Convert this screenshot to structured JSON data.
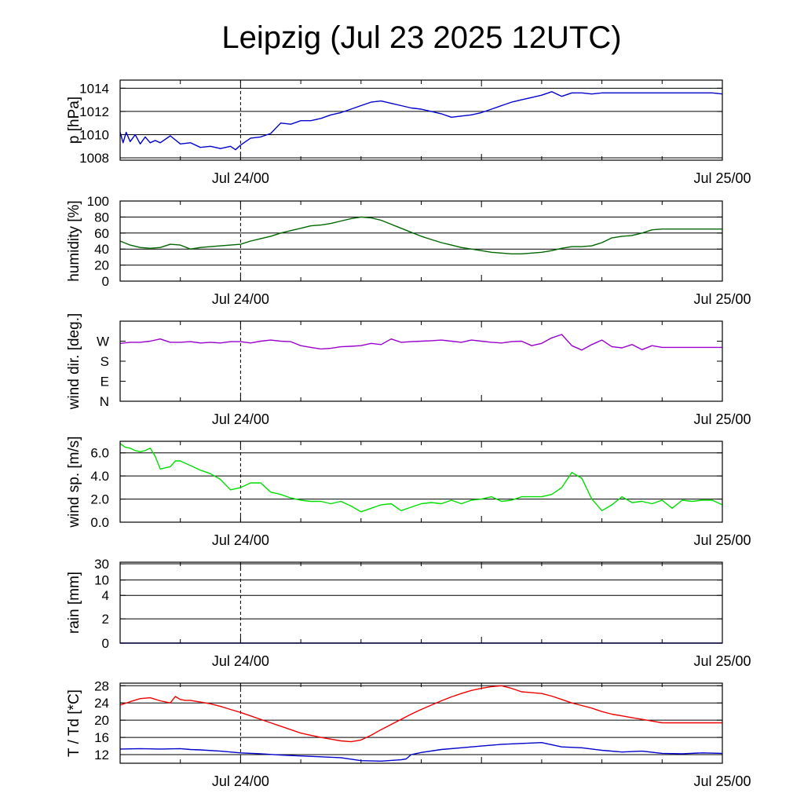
{
  "page": {
    "title": "Leipzig (Jul 23 2025 12UTC)"
  },
  "chart_data": [
    {
      "type": "line",
      "ylabel": "p [hPa]",
      "y_ticks": [
        1008,
        1010,
        1012,
        1014
      ],
      "ylim": [
        1007.8,
        1014.7
      ],
      "x_ticks": [
        "Jul 24/00",
        "Jul 25/00"
      ],
      "x_hours": [
        0,
        6,
        12,
        18,
        24,
        30,
        36,
        42,
        48,
        54,
        60
      ],
      "grid": true,
      "series": [
        {
          "color": "#0000cc",
          "x": [
            0,
            0.3,
            0.6,
            1,
            1.5,
            2,
            2.5,
            3,
            3.5,
            4,
            5,
            6,
            7,
            8,
            9,
            10,
            11,
            11.5,
            12,
            13,
            14,
            15,
            16,
            17,
            18,
            19,
            20,
            21,
            22,
            23,
            24,
            25,
            26,
            27,
            28,
            29,
            30,
            31,
            32,
            33,
            34,
            35,
            36,
            37,
            38,
            39,
            40,
            41,
            42,
            43,
            44,
            45,
            46,
            47,
            48,
            49,
            50,
            51,
            52,
            53,
            54,
            55,
            56,
            57,
            58,
            59,
            60
          ],
          "y": [
            1010.2,
            1009.3,
            1010.2,
            1009.4,
            1010.0,
            1009.2,
            1009.8,
            1009.3,
            1009.5,
            1009.3,
            1009.9,
            1009.2,
            1009.3,
            1008.9,
            1009.0,
            1008.8,
            1009.0,
            1008.7,
            1009.1,
            1009.7,
            1009.8,
            1010.1,
            1011.0,
            1010.9,
            1011.2,
            1011.2,
            1011.4,
            1011.7,
            1011.9,
            1012.2,
            1012.5,
            1012.8,
            1012.9,
            1012.7,
            1012.5,
            1012.3,
            1012.2,
            1012.0,
            1011.8,
            1011.5,
            1011.6,
            1011.7,
            1011.9,
            1012.2,
            1012.5,
            1012.8,
            1013.0,
            1013.2,
            1013.4,
            1013.7,
            1013.3,
            1013.6,
            1013.6,
            1013.5,
            1013.6,
            1013.6,
            1013.6,
            1013.6,
            1013.6,
            1013.6,
            1013.6,
            1013.6,
            1013.6,
            1013.6,
            1013.6,
            1013.6,
            1013.5
          ]
        }
      ]
    },
    {
      "type": "line",
      "ylabel": "humidity [%]",
      "y_ticks": [
        0,
        20,
        40,
        60,
        80,
        100
      ],
      "ylim": [
        0,
        100
      ],
      "x_ticks": [
        "Jul 24/00",
        "Jul 25/00"
      ],
      "x_hours": [
        0,
        6,
        12,
        18,
        24,
        30,
        36,
        42,
        48,
        54,
        60
      ],
      "grid": true,
      "series": [
        {
          "color": "#006600",
          "x": [
            0,
            1,
            2,
            3,
            4,
            5,
            6,
            7,
            8,
            9,
            10,
            11,
            12,
            13,
            14,
            15,
            16,
            17,
            18,
            19,
            20,
            21,
            22,
            23,
            24,
            25,
            26,
            27,
            28,
            29,
            30,
            31,
            32,
            33,
            34,
            35,
            36,
            37,
            38,
            39,
            40,
            41,
            42,
            43,
            44,
            45,
            46,
            47,
            48,
            49,
            50,
            51,
            52,
            53,
            54,
            55,
            56,
            57,
            58,
            59,
            60
          ],
          "y": [
            50,
            45,
            42,
            41,
            42,
            46,
            45,
            40,
            42,
            43,
            44,
            45,
            46,
            50,
            53,
            56,
            60,
            63,
            66,
            69,
            70,
            72,
            75,
            78,
            80,
            79,
            76,
            71,
            66,
            61,
            56,
            52,
            48,
            45,
            42,
            40,
            38,
            36,
            35,
            34,
            34,
            35,
            36,
            38,
            41,
            43,
            43,
            44,
            48,
            54,
            56,
            57,
            60,
            64,
            65,
            65,
            65,
            65,
            65,
            65,
            65
          ]
        }
      ]
    },
    {
      "type": "line",
      "ylabel": "wind dir. [deg.]",
      "y_tick_labels": [
        "N",
        "E",
        "S",
        "W"
      ],
      "y_ticks": [
        0,
        90,
        180,
        270
      ],
      "ylim": [
        0,
        360
      ],
      "x_ticks": [
        "Jul 24/00",
        "Jul 25/00"
      ],
      "x_hours": [
        0,
        6,
        12,
        18,
        24,
        30,
        36,
        42,
        48,
        54,
        60
      ],
      "grid": false,
      "series": [
        {
          "color": "#9900cc",
          "x": [
            0,
            1,
            2,
            3,
            4,
            5,
            6,
            7,
            8,
            9,
            10,
            11,
            12,
            13,
            14,
            15,
            16,
            17,
            18,
            19,
            20,
            21,
            22,
            23,
            24,
            25,
            26,
            27,
            28,
            29,
            30,
            31,
            32,
            33,
            34,
            35,
            36,
            37,
            38,
            39,
            40,
            41,
            42,
            43,
            44,
            45,
            46,
            47,
            48,
            49,
            50,
            51,
            52,
            53,
            54,
            55,
            56,
            57,
            58,
            59,
            60
          ],
          "y": [
            260,
            265,
            265,
            270,
            280,
            265,
            265,
            268,
            262,
            265,
            262,
            268,
            268,
            262,
            270,
            275,
            270,
            268,
            250,
            242,
            235,
            238,
            245,
            247,
            250,
            260,
            255,
            280,
            265,
            268,
            270,
            272,
            275,
            270,
            265,
            275,
            270,
            265,
            262,
            268,
            270,
            250,
            260,
            285,
            300,
            250,
            230,
            255,
            275,
            245,
            240,
            255,
            232,
            250,
            242,
            242,
            242,
            242,
            242,
            242,
            242
          ]
        }
      ]
    },
    {
      "type": "line",
      "ylabel": "wind sp. [m/s]",
      "y_ticks": [
        0.0,
        2.0,
        4.0,
        6.0
      ],
      "y_tick_labels": [
        "0.0",
        "2.0",
        "4.0",
        "6.0"
      ],
      "ylim": [
        0,
        7
      ],
      "x_ticks": [
        "Jul 24/00",
        "Jul 25/00"
      ],
      "x_hours": [
        0,
        6,
        12,
        18,
        24,
        30,
        36,
        42,
        48,
        54,
        60
      ],
      "grid": true,
      "series": [
        {
          "color": "#00dd00",
          "x": [
            0,
            0.5,
            1,
            1.5,
            2,
            2.5,
            3,
            3.5,
            4,
            4.5,
            5,
            5.5,
            6,
            6.5,
            7,
            8,
            9,
            10,
            11,
            12,
            13,
            14,
            15,
            16,
            17,
            18,
            19,
            20,
            21,
            22,
            23,
            24,
            25,
            26,
            27,
            28,
            29,
            30,
            31,
            32,
            33,
            34,
            35,
            36,
            37,
            38,
            39,
            40,
            41,
            42,
            43,
            44,
            45,
            46,
            47,
            48,
            49,
            50,
            51,
            52,
            53,
            54,
            55,
            56,
            57,
            58,
            59,
            60
          ],
          "y": [
            6.8,
            6.5,
            6.4,
            6.2,
            6.1,
            6.2,
            6.4,
            5.7,
            4.6,
            4.7,
            4.8,
            5.3,
            5.3,
            5.1,
            4.9,
            4.5,
            4.2,
            3.7,
            2.8,
            3.0,
            3.4,
            3.4,
            2.6,
            2.4,
            2.1,
            1.9,
            1.8,
            1.8,
            1.6,
            1.8,
            1.4,
            0.9,
            1.2,
            1.5,
            1.6,
            1.0,
            1.3,
            1.6,
            1.7,
            1.6,
            1.9,
            1.6,
            1.9,
            2.0,
            2.2,
            1.8,
            1.9,
            2.2,
            2.2,
            2.2,
            2.4,
            3.0,
            4.3,
            3.8,
            2.0,
            1.0,
            1.5,
            2.2,
            1.7,
            1.8,
            1.6,
            1.9,
            1.2,
            1.9,
            1.8,
            1.9,
            1.9,
            1.5
          ]
        }
      ]
    },
    {
      "type": "line",
      "ylabel": "rain [mm]",
      "y_ticks": [
        0,
        2,
        4,
        10,
        30
      ],
      "y_tick_labels": [
        "0",
        "2",
        "4",
        "10",
        "30"
      ],
      "ylim": [
        0,
        30
      ],
      "x_ticks": [
        "Jul 24/00",
        "Jul 25/00"
      ],
      "x_hours": [
        0,
        6,
        12,
        18,
        24,
        30,
        36,
        42,
        48,
        54,
        60
      ],
      "grid": true,
      "series": [
        {
          "color": "#0000cc",
          "x": [
            0,
            60
          ],
          "y": [
            0,
            0
          ]
        }
      ]
    },
    {
      "type": "line",
      "ylabel": "T / Td [*C]",
      "y_ticks": [
        12,
        16,
        20,
        24,
        28
      ],
      "ylim": [
        10,
        28.6
      ],
      "x_ticks": [
        "Jul 24/00",
        "Jul 25/00"
      ],
      "x_hours": [
        0,
        6,
        12,
        18,
        24,
        30,
        36,
        42,
        48,
        54,
        60
      ],
      "grid": true,
      "series": [
        {
          "color": "#ee0000",
          "x": [
            0,
            1,
            2,
            3,
            4,
            5,
            5.5,
            6,
            6.5,
            7,
            8,
            9,
            10,
            11,
            12,
            13,
            14,
            15,
            16,
            17,
            18,
            19,
            20,
            21,
            22,
            23,
            24,
            25,
            26,
            27,
            28,
            29,
            30,
            31,
            32,
            33,
            34,
            35,
            36,
            37,
            38,
            39,
            40,
            41,
            42,
            43,
            44,
            45,
            46,
            47,
            48,
            49,
            50,
            51,
            52,
            53,
            54,
            55,
            56,
            57,
            58,
            59,
            60
          ],
          "y": [
            23.5,
            24.3,
            25.0,
            25.2,
            24.5,
            24.0,
            25.5,
            24.8,
            24.6,
            24.6,
            24.2,
            23.8,
            23.2,
            22.5,
            21.8,
            21.0,
            20.2,
            19.4,
            18.6,
            17.8,
            17.0,
            16.5,
            16.0,
            15.6,
            15.2,
            15.0,
            15.4,
            16.5,
            17.8,
            19.0,
            20.2,
            21.4,
            22.5,
            23.5,
            24.5,
            25.4,
            26.2,
            26.9,
            27.4,
            27.8,
            28.0,
            27.4,
            26.6,
            26.4,
            26.2,
            25.6,
            24.8,
            24.0,
            23.4,
            22.8,
            22.0,
            21.4,
            21.0,
            20.6,
            20.2,
            19.8,
            19.4,
            19.4,
            19.4,
            19.4,
            19.4,
            19.4,
            19.4
          ]
        },
        {
          "color": "#0000cc",
          "x": [
            0,
            2,
            4,
            6,
            7,
            8,
            10,
            12,
            14,
            16,
            18,
            20,
            22,
            24,
            26,
            28,
            28.5,
            29,
            30,
            32,
            34,
            36,
            38,
            40,
            42,
            44,
            46,
            48,
            50,
            52,
            54,
            56,
            58,
            60
          ],
          "y": [
            13.3,
            13.4,
            13.3,
            13.4,
            13.2,
            13.1,
            12.8,
            12.4,
            12.2,
            11.9,
            11.7,
            11.5,
            11.3,
            10.6,
            10.5,
            10.8,
            11.0,
            12.0,
            12.5,
            13.2,
            13.6,
            14.0,
            14.4,
            14.6,
            14.8,
            13.8,
            13.6,
            13.0,
            12.6,
            12.8,
            12.3,
            12.2,
            12.4,
            12.3
          ]
        }
      ]
    }
  ]
}
